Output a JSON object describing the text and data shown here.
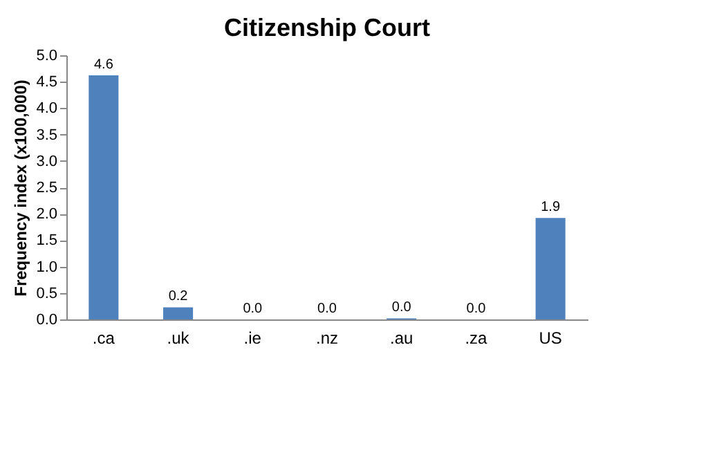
{
  "chart_data": {
    "type": "bar",
    "title": "Citizenship Court",
    "ylabel": "Frequency index (x100,000)",
    "categories": [
      ".ca",
      ".uk",
      ".ie",
      ".nz",
      ".au",
      ".za",
      "US"
    ],
    "values": [
      4.62,
      0.23,
      0,
      0,
      0.02,
      0,
      1.92
    ],
    "value_labels": [
      "4.6",
      "0.2",
      "0.0",
      "0.0",
      "0.0",
      "0.0",
      "1.9"
    ],
    "color": "#4f81bd",
    "ylim": [
      0,
      5
    ],
    "yticks": [
      {
        "value": 0,
        "label": "0.0"
      },
      {
        "value": 0.5,
        "label": "0.5"
      },
      {
        "value": 1,
        "label": "1.0"
      },
      {
        "value": 1.5,
        "label": "1.5"
      },
      {
        "value": 2,
        "label": "2.0"
      },
      {
        "value": 2.5,
        "label": "2.5"
      },
      {
        "value": 3,
        "label": "3.0"
      },
      {
        "value": 3.5,
        "label": "3.5"
      },
      {
        "value": 4,
        "label": "4.0"
      },
      {
        "value": 4.5,
        "label": "4.5"
      },
      {
        "value": 5,
        "label": "5.0"
      }
    ],
    "grid": false
  }
}
